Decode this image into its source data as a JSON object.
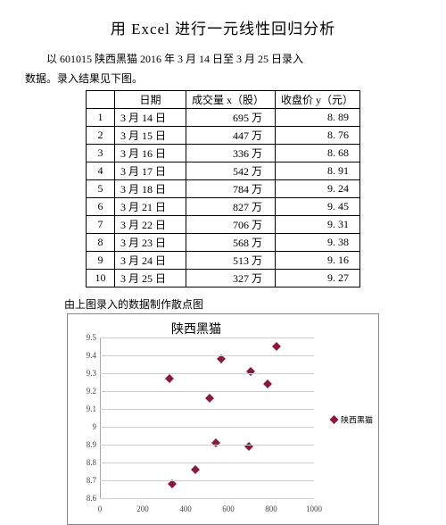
{
  "title": "用 Excel 进行一元线性回归分析",
  "intro_line1": "以 601015 陕西黑猫 2016 年 3 月 14 日至 3 月 25 日录入",
  "intro_line2": "数据。录入结果见下图。",
  "table": {
    "headers": {
      "idx": "",
      "date": "日期",
      "vol": "成交量 x（股）",
      "price": "收盘价 y（元）"
    },
    "rows": [
      {
        "idx": "1",
        "date": "3 月 14 日",
        "vol": "695 万",
        "price": "8. 89"
      },
      {
        "idx": "2",
        "date": "3 月 15 日",
        "vol": "447 万",
        "price": "8. 76"
      },
      {
        "idx": "3",
        "date": "3 月 16 日",
        "vol": "336 万",
        "price": "8. 68"
      },
      {
        "idx": "4",
        "date": "3 月 17 日",
        "vol": "542 万",
        "price": "8. 91"
      },
      {
        "idx": "5",
        "date": "3 月 18 日",
        "vol": "784 万",
        "price": "9. 24"
      },
      {
        "idx": "6",
        "date": "3 月 21 日",
        "vol": "827 万",
        "price": "9. 45"
      },
      {
        "idx": "7",
        "date": "3 月 22 日",
        "vol": "706 万",
        "price": "9. 31"
      },
      {
        "idx": "8",
        "date": "3 月 23 日",
        "vol": "568 万",
        "price": "9. 38"
      },
      {
        "idx": "9",
        "date": "3 月 24 日",
        "vol": "513 万",
        "price": "9. 16"
      },
      {
        "idx": "10",
        "date": "3 月 25 日",
        "vol": "327 万",
        "price": "9. 27"
      }
    ]
  },
  "caption2": "由上图录入的数据制作散点图",
  "chart": {
    "type": "scatter",
    "title": "陕西黑猫",
    "legend_label": "陕西黑猫",
    "marker_color": "#8b1a3a",
    "grid_color": "#d0d0d0",
    "background_color": "#ffffff",
    "xlim": [
      0,
      1000
    ],
    "ylim": [
      8.6,
      9.5
    ],
    "xtick_step": 200,
    "ytick_step": 0.1,
    "xticks": [
      0,
      200,
      400,
      600,
      800,
      1000
    ],
    "yticks": [
      8.6,
      8.7,
      8.8,
      8.9,
      9,
      9.1,
      9.2,
      9.3,
      9.4,
      9.5
    ],
    "points": [
      {
        "x": 695,
        "y": 8.89
      },
      {
        "x": 447,
        "y": 8.76
      },
      {
        "x": 336,
        "y": 8.68
      },
      {
        "x": 542,
        "y": 8.91
      },
      {
        "x": 784,
        "y": 9.24
      },
      {
        "x": 827,
        "y": 9.45
      },
      {
        "x": 706,
        "y": 9.31
      },
      {
        "x": 568,
        "y": 9.38
      },
      {
        "x": 513,
        "y": 9.16
      },
      {
        "x": 327,
        "y": 9.27
      }
    ]
  }
}
